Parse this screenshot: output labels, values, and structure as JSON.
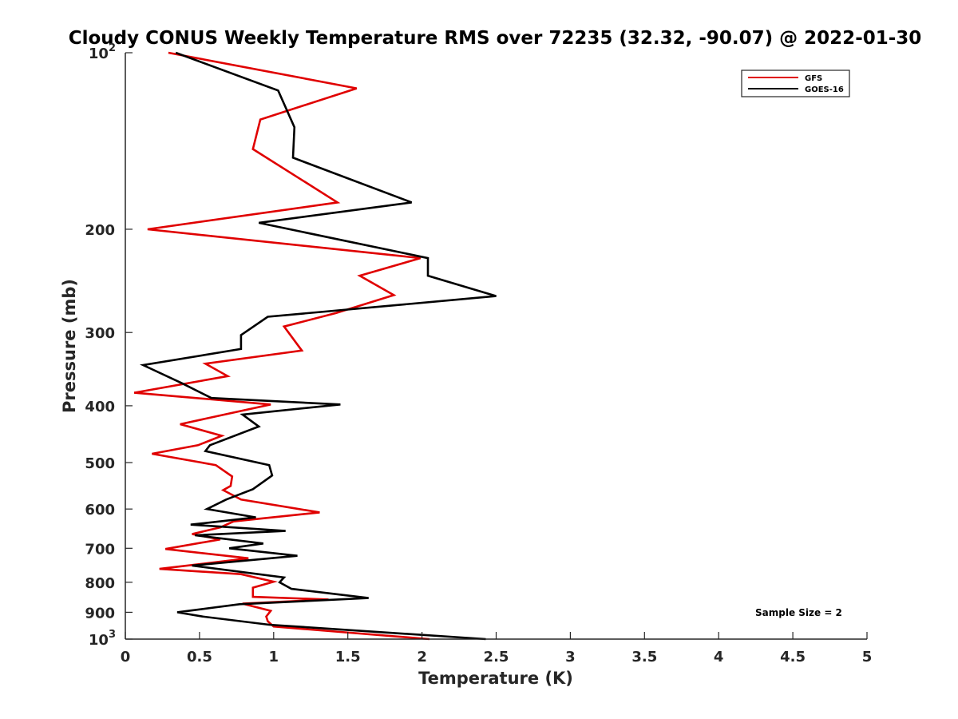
{
  "chart_data": {
    "type": "line",
    "title": "Cloudy CONUS Weekly Temperature RMS over 72235 (32.32, -90.07) @ 2022-01-30",
    "xlabel": "Temperature (K)",
    "ylabel": "Pressure (mb)",
    "xlim": [
      0,
      5
    ],
    "ylim": [
      100,
      1000
    ],
    "y_scale": "log",
    "y_reversed": true,
    "grid": false,
    "legend_position": "top-right",
    "x_ticks": [
      {
        "value": 0,
        "label": "0"
      },
      {
        "value": 0.5,
        "label": "0.5"
      },
      {
        "value": 1,
        "label": "1"
      },
      {
        "value": 1.5,
        "label": "1.5"
      },
      {
        "value": 2,
        "label": "2"
      },
      {
        "value": 2.5,
        "label": "2.5"
      },
      {
        "value": 3,
        "label": "3"
      },
      {
        "value": 3.5,
        "label": "3.5"
      },
      {
        "value": 4,
        "label": "4"
      },
      {
        "value": 4.5,
        "label": "4.5"
      },
      {
        "value": 5,
        "label": "5"
      }
    ],
    "y_ticks": [
      {
        "value": 100,
        "base": "10",
        "exp": "2"
      },
      {
        "value": 200,
        "label": "200"
      },
      {
        "value": 300,
        "label": "300"
      },
      {
        "value": 400,
        "label": "400"
      },
      {
        "value": 500,
        "label": "500"
      },
      {
        "value": 600,
        "label": "600"
      },
      {
        "value": 700,
        "label": "700"
      },
      {
        "value": 800,
        "label": "800"
      },
      {
        "value": 900,
        "label": "900"
      },
      {
        "value": 1000,
        "base": "10",
        "exp": "3"
      }
    ],
    "annotation": "Sample Size = 2",
    "series": [
      {
        "name": "GFS",
        "color": "#e00000",
        "points": [
          [
            0.29,
            100
          ],
          [
            1.56,
            115
          ],
          [
            0.91,
            130
          ],
          [
            0.86,
            146
          ],
          [
            1.43,
            180
          ],
          [
            0.15,
            200
          ],
          [
            1.99,
            224
          ],
          [
            1.58,
            240
          ],
          [
            1.81,
            259
          ],
          [
            1.42,
            278
          ],
          [
            1.07,
            293
          ],
          [
            1.19,
            322
          ],
          [
            0.54,
            339
          ],
          [
            0.69,
            356
          ],
          [
            0.06,
            380
          ],
          [
            0.98,
            398
          ],
          [
            0.37,
            430
          ],
          [
            0.65,
            450
          ],
          [
            0.49,
            467
          ],
          [
            0.18,
            483
          ],
          [
            0.61,
            505
          ],
          [
            0.72,
            528
          ],
          [
            0.71,
            548
          ],
          [
            0.66,
            557
          ],
          [
            0.78,
            578
          ],
          [
            1.31,
            608
          ],
          [
            0.73,
            630
          ],
          [
            0.64,
            645
          ],
          [
            0.45,
            662
          ],
          [
            0.64,
            676
          ],
          [
            0.27,
            702
          ],
          [
            0.83,
            728
          ],
          [
            0.23,
            759
          ],
          [
            0.78,
            775
          ],
          [
            1.0,
            798
          ],
          [
            0.86,
            817
          ],
          [
            0.86,
            847
          ],
          [
            1.37,
            856
          ],
          [
            0.79,
            870
          ],
          [
            0.98,
            895
          ],
          [
            0.95,
            915
          ],
          [
            0.96,
            932
          ],
          [
            1.0,
            952
          ],
          [
            2.05,
            1000
          ]
        ]
      },
      {
        "name": "GOES-16",
        "color": "#000000",
        "points": [
          [
            0.34,
            100
          ],
          [
            1.03,
            116
          ],
          [
            1.14,
            134
          ],
          [
            1.13,
            151
          ],
          [
            1.93,
            180
          ],
          [
            0.9,
            195
          ],
          [
            2.04,
            224
          ],
          [
            2.04,
            240
          ],
          [
            2.5,
            260
          ],
          [
            0.96,
            282
          ],
          [
            0.78,
            303
          ],
          [
            0.78,
            320
          ],
          [
            0.12,
            341
          ],
          [
            0.38,
            366
          ],
          [
            0.58,
            388
          ],
          [
            1.45,
            398
          ],
          [
            0.79,
            414
          ],
          [
            0.9,
            434
          ],
          [
            0.57,
            467
          ],
          [
            0.54,
            478
          ],
          [
            0.97,
            505
          ],
          [
            0.99,
            526
          ],
          [
            0.86,
            555
          ],
          [
            0.68,
            578
          ],
          [
            0.55,
            600
          ],
          [
            0.88,
            620
          ],
          [
            0.44,
            638
          ],
          [
            1.08,
            654
          ],
          [
            0.47,
            665
          ],
          [
            0.93,
            687
          ],
          [
            0.7,
            700
          ],
          [
            1.16,
            721
          ],
          [
            0.45,
            749
          ],
          [
            1.07,
            785
          ],
          [
            1.04,
            800
          ],
          [
            1.12,
            821
          ],
          [
            1.64,
            851
          ],
          [
            0.77,
            872
          ],
          [
            0.35,
            900
          ],
          [
            0.52,
            915
          ],
          [
            0.97,
            945
          ],
          [
            2.43,
            1000
          ]
        ]
      }
    ]
  }
}
